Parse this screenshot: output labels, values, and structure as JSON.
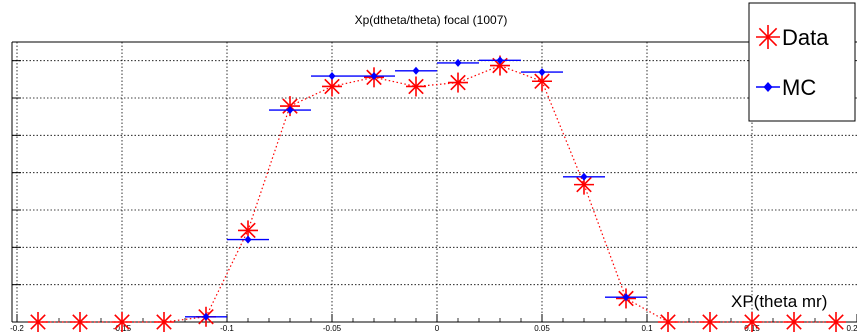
{
  "chart_data": {
    "type": "scatter",
    "title": "Xp(dtheta/theta) focal (1007)",
    "xlabel": "XP(theta mr)",
    "ylabel": "",
    "xlim": [
      -0.2,
      0.2
    ],
    "ylim": [
      0.0,
      1.07
    ],
    "grid": true,
    "legend_position": "top-right",
    "x_tick_values": [
      -0.2,
      -0.15,
      -0.1,
      -0.05,
      0,
      0.05,
      0.1,
      0.15,
      0.2
    ],
    "x_tick_labels": [
      "-0.2",
      "-0.15",
      "-0.1",
      "-0.05",
      "0",
      "0.05",
      "0.1",
      "0.15",
      "0.2"
    ],
    "y_major_count": 10,
    "x_error_half_width": 0.01,
    "series": [
      {
        "name": "Data",
        "marker": "star",
        "color": "#ff0000",
        "x": [
          -0.19,
          -0.17,
          -0.15,
          -0.13,
          -0.11,
          -0.09,
          -0.07,
          -0.05,
          -0.03,
          -0.01,
          0.01,
          0.03,
          0.05,
          0.07,
          0.09,
          0.11,
          0.13,
          0.15,
          0.17,
          0.19
        ],
        "y": [
          0.0,
          0.0,
          0.0,
          0.0,
          0.02,
          0.35,
          0.825,
          0.9,
          0.935,
          0.9,
          0.915,
          0.98,
          0.92,
          0.525,
          0.09,
          0.0,
          0.0,
          0.0,
          0.0,
          0.0
        ]
      },
      {
        "name": "MC",
        "marker": "diamond",
        "color": "#0000ff",
        "x": [
          -0.11,
          -0.09,
          -0.07,
          -0.05,
          -0.03,
          -0.01,
          0.01,
          0.03,
          0.05,
          0.07,
          0.09
        ],
        "y": [
          0.02,
          0.315,
          0.81,
          0.94,
          0.94,
          0.96,
          0.99,
          1.0,
          0.955,
          0.555,
          0.095
        ]
      }
    ]
  }
}
